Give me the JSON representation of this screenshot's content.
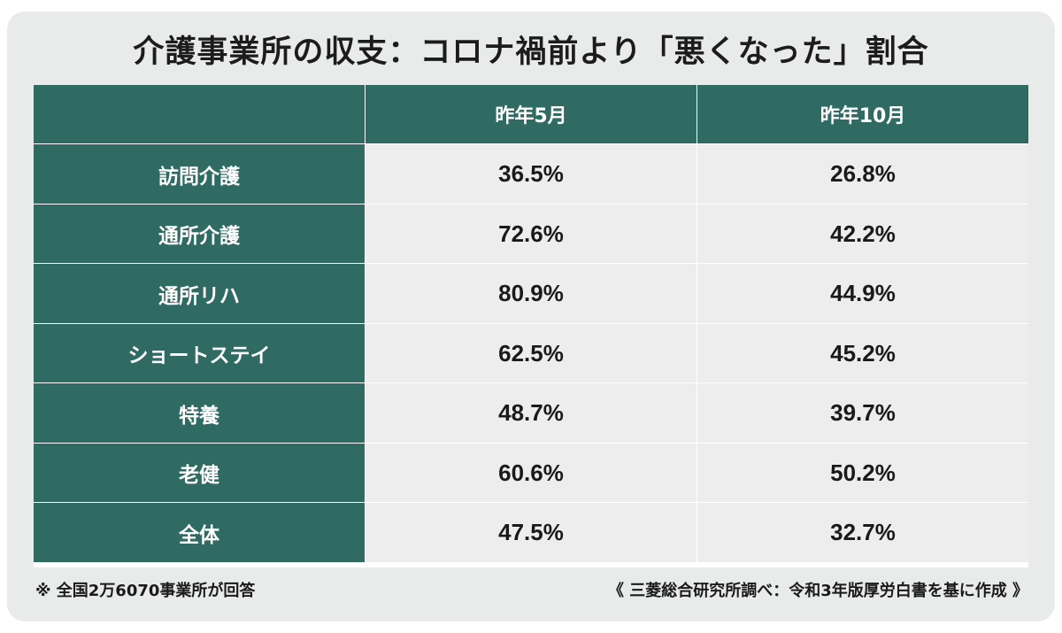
{
  "chart_data": {
    "type": "table",
    "title": "介護事業所の収支：コロナ禍前より「悪くなった」割合",
    "columns": [
      "",
      "昨年5月",
      "昨年10月"
    ],
    "rows": [
      {
        "label": "訪問介護",
        "values": [
          "36.5%",
          "26.8%"
        ]
      },
      {
        "label": "通所介護",
        "values": [
          "72.6%",
          "42.2%"
        ]
      },
      {
        "label": "通所リハ",
        "values": [
          "80.9%",
          "44.9%"
        ]
      },
      {
        "label": "ショートステイ",
        "values": [
          "62.5%",
          "45.2%"
        ]
      },
      {
        "label": "特養",
        "values": [
          "48.7%",
          "39.7%"
        ]
      },
      {
        "label": "老健",
        "values": [
          "60.6%",
          "50.2%"
        ]
      },
      {
        "label": "全体",
        "values": [
          "47.5%",
          "32.7%"
        ]
      }
    ]
  },
  "footnote_left": "※ 全国2万6070事業所が回答",
  "footnote_right": "《 三菱総合研究所調べ：令和3年版厚労白書を基に作成 》",
  "colors": {
    "header_bg": "#2f6a63",
    "cell_bg": "#ecedec",
    "card_bg": "#e9ebea"
  }
}
